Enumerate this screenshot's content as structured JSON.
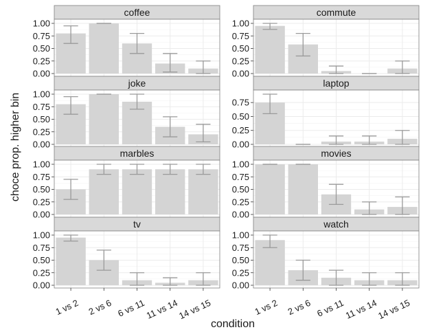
{
  "chart_data": {
    "type": "bar",
    "facet": "faceted bar chart with error bars, 2 columns x 4 rows",
    "xlabel": "condition",
    "ylabel": "choce prop. higher bin",
    "categories": [
      "1 vs 2",
      "2 vs 6",
      "6 vs 11",
      "11 vs 14",
      "14 vs 15"
    ],
    "grid": true,
    "colors": {
      "bar": "#d4d4d4",
      "errorbar": "#9a9a9a",
      "strip": "#d9d9d9",
      "panel_grid": "#ebebeb",
      "border": "#7f7f7f"
    },
    "panels": [
      {
        "name": "coffee",
        "ylim": [
          0,
          1.0
        ],
        "yticks": [
          "1.00",
          "0.75",
          "0.50",
          "0.25",
          "0.00"
        ],
        "values": [
          0.8,
          1.0,
          0.6,
          0.2,
          0.1
        ],
        "err_low": [
          0.6,
          1.0,
          0.4,
          0.03,
          0.0
        ],
        "err_high": [
          0.95,
          1.0,
          0.8,
          0.4,
          0.25
        ]
      },
      {
        "name": "commute",
        "ylim": [
          0,
          1.0
        ],
        "yticks": [
          "1.00",
          "0.75",
          "0.50",
          "0.25",
          "0.00"
        ],
        "values": [
          0.95,
          0.58,
          0.05,
          0.0,
          0.1
        ],
        "err_low": [
          0.88,
          0.35,
          0.0,
          0.0,
          0.0
        ],
        "err_high": [
          1.0,
          0.8,
          0.15,
          0.0,
          0.25
        ]
      },
      {
        "name": "joke",
        "ylim": [
          0,
          1.0
        ],
        "yticks": [
          "1.00",
          "0.75",
          "0.50",
          "0.25",
          "0.00"
        ],
        "values": [
          0.8,
          1.0,
          0.85,
          0.35,
          0.2
        ],
        "err_low": [
          0.6,
          1.0,
          0.7,
          0.15,
          0.05
        ],
        "err_high": [
          0.95,
          1.0,
          1.0,
          0.55,
          0.4
        ]
      },
      {
        "name": "laptop",
        "ylim": [
          0,
          0.9
        ],
        "yticks": [
          "0.75",
          "0.50",
          "0.25",
          "0.00"
        ],
        "values": [
          0.75,
          0.0,
          0.05,
          0.05,
          0.1
        ],
        "err_low": [
          0.55,
          0.0,
          0.0,
          0.0,
          0.0
        ],
        "err_high": [
          0.9,
          0.0,
          0.15,
          0.15,
          0.25
        ]
      },
      {
        "name": "marbles",
        "ylim": [
          0,
          1.0
        ],
        "yticks": [
          "1.00",
          "0.75",
          "0.50",
          "0.25",
          "0.00"
        ],
        "values": [
          0.5,
          0.9,
          0.9,
          0.9,
          0.9
        ],
        "err_low": [
          0.3,
          0.8,
          0.8,
          0.8,
          0.8
        ],
        "err_high": [
          0.7,
          1.0,
          1.0,
          1.0,
          1.0
        ]
      },
      {
        "name": "movies",
        "ylim": [
          0,
          1.0
        ],
        "yticks": [
          "1.00",
          "0.75",
          "0.50",
          "0.25",
          "0.00"
        ],
        "values": [
          1.0,
          1.0,
          0.4,
          0.1,
          0.15
        ],
        "err_low": [
          1.0,
          1.0,
          0.2,
          0.0,
          0.0
        ],
        "err_high": [
          1.0,
          1.0,
          0.6,
          0.25,
          0.35
        ]
      },
      {
        "name": "tv",
        "ylim": [
          0,
          1.0
        ],
        "yticks": [
          "1.00",
          "0.75",
          "0.50",
          "0.25",
          "0.00"
        ],
        "values": [
          0.95,
          0.5,
          0.1,
          0.05,
          0.1
        ],
        "err_low": [
          0.88,
          0.3,
          0.0,
          0.0,
          0.0
        ],
        "err_high": [
          1.0,
          0.7,
          0.25,
          0.15,
          0.25
        ]
      },
      {
        "name": "watch",
        "ylim": [
          0,
          1.0
        ],
        "yticks": [
          "1.00",
          "0.75",
          "0.50",
          "0.25",
          "0.00"
        ],
        "values": [
          0.9,
          0.3,
          0.15,
          0.1,
          0.1
        ],
        "err_low": [
          0.75,
          0.1,
          0.0,
          0.0,
          0.0
        ],
        "err_high": [
          1.0,
          0.5,
          0.3,
          0.25,
          0.25
        ]
      }
    ]
  }
}
